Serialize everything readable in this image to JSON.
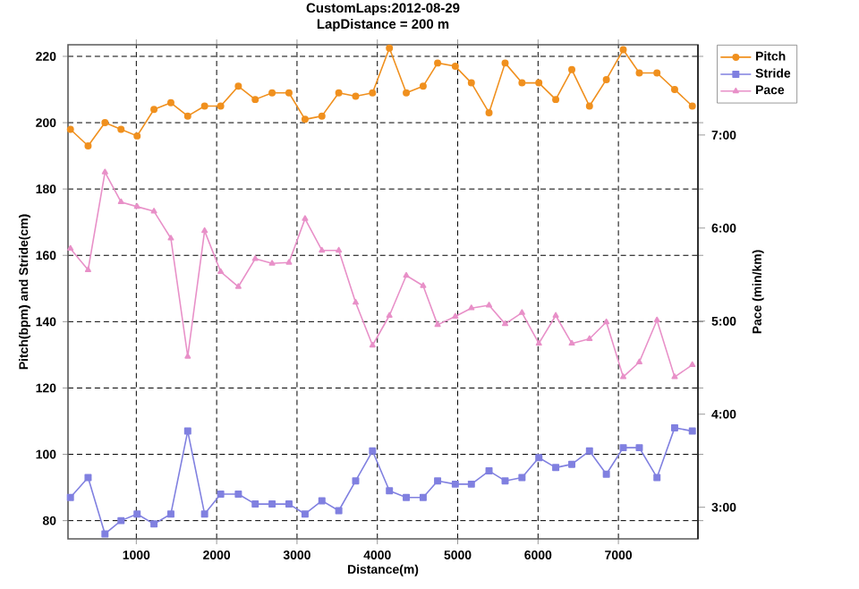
{
  "chart_data": {
    "type": "line",
    "title": "CustomLaps:2012-08-29",
    "subtitle": "LapDistance = 200 m",
    "xlabel": "Distance(m)",
    "ylabel": "Pitch(bpm) and Stride(cm)",
    "y2label": "Pace (min/km)",
    "x": [
      180,
      400,
      610,
      810,
      1010,
      1220,
      1430,
      1640,
      1850,
      2050,
      2270,
      2480,
      2690,
      2900,
      3100,
      3310,
      3520,
      3730,
      3940,
      4150,
      4360,
      4570,
      4750,
      4970,
      5170,
      5390,
      5590,
      5800,
      6010,
      6220,
      6420,
      6640,
      6850,
      7060,
      7260,
      7480,
      7700,
      7920
    ],
    "series": [
      {
        "name": "Pitch",
        "color": "#f0901e",
        "marker": "circle",
        "values": [
          198,
          193,
          200,
          198,
          196,
          204,
          206,
          202,
          205,
          205,
          211,
          207,
          209,
          209,
          201,
          202,
          209,
          208,
          209,
          222.5,
          209,
          211,
          218,
          217,
          212,
          203,
          218,
          212,
          212,
          207,
          216,
          205,
          213,
          222,
          215,
          215,
          210,
          205
        ]
      },
      {
        "name": "Stride",
        "color": "#8080e0",
        "marker": "square",
        "values": [
          87,
          93,
          76,
          80,
          82,
          79,
          82,
          107,
          82,
          88,
          88,
          85,
          85,
          85,
          82,
          86,
          83,
          92,
          101,
          89,
          87,
          87,
          92,
          91,
          91,
          95,
          92,
          93,
          99,
          96,
          97,
          101,
          94,
          102,
          102,
          93,
          108,
          107
        ]
      },
      {
        "name": "Pace",
        "color": "#e890c8",
        "marker": "triangle",
        "axis": "y2",
        "values": [
          5.78,
          5.55,
          6.6,
          6.28,
          6.23,
          6.18,
          5.89,
          4.62,
          5.97,
          5.53,
          5.37,
          5.67,
          5.62,
          5.63,
          6.1,
          5.76,
          5.76,
          5.2,
          4.74,
          5.06,
          5.49,
          5.38,
          4.96,
          5.05,
          5.14,
          5.17,
          4.97,
          5.09,
          4.76,
          5.06,
          4.76,
          4.81,
          4.99,
          4.4,
          4.56,
          5.01,
          4.4,
          4.53
        ]
      }
    ],
    "xlim": [
      150,
      7990
    ],
    "xticks": [
      1000,
      2000,
      3000,
      4000,
      5000,
      6000,
      7000
    ],
    "ylim": [
      74.5,
      223.5
    ],
    "yticks": [
      80,
      100,
      120,
      140,
      160,
      180,
      200,
      220
    ],
    "y2lim": [
      2.66,
      7.97
    ],
    "y2ticks": [
      {
        "value": 3,
        "label": "3:00"
      },
      {
        "value": 4,
        "label": "4:00"
      },
      {
        "value": 5,
        "label": "5:00"
      },
      {
        "value": 6,
        "label": "6:00"
      },
      {
        "value": 7,
        "label": "7:00"
      }
    ],
    "grid": true,
    "legend": "right",
    "line_style": "solid"
  }
}
